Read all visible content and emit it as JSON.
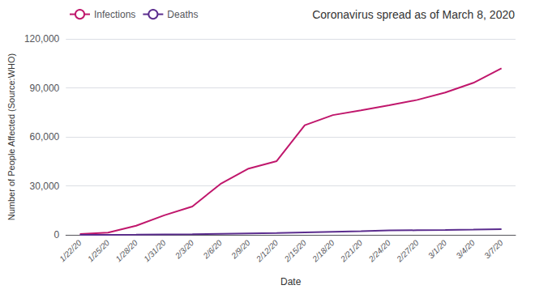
{
  "chart_data": {
    "type": "line",
    "title": "Coronavirus spread as of March 8, 2020",
    "xlabel": "Date",
    "ylabel": "Number of People Affected (Source:WHO)",
    "categories": [
      "1/22/20",
      "1/25/20",
      "1/28/20",
      "1/31/20",
      "2/3/20",
      "2/6/20",
      "2/9/20",
      "2/12/20",
      "2/15/20",
      "2/18/20",
      "2/21/20",
      "2/24/20",
      "2/27/20",
      "3/1/20",
      "3/4/20",
      "3/7/20"
    ],
    "series": [
      {
        "name": "Infections",
        "color": "#c0176c",
        "values": [
          555,
          1320,
          5578,
          11948,
          17391,
          31161,
          40553,
          45134,
          67100,
          73332,
          76281,
          79331,
          82623,
          87137,
          93090,
          101927
        ]
      },
      {
        "name": "Deaths",
        "color": "#5b2d8e",
        "values": [
          17,
          41,
          131,
          259,
          362,
          638,
          910,
          1115,
          1527,
          1873,
          2247,
          2699,
          2810,
          2978,
          3205,
          3460
        ]
      }
    ],
    "ylim": [
      0,
      120000
    ],
    "yticks": [
      0,
      {
        "value": 30000,
        "label": "30,000"
      },
      {
        "value": 60000,
        "label": "60,000"
      },
      {
        "value": 90000,
        "label": "90,000"
      },
      {
        "value": 120000,
        "label": "120,000"
      }
    ],
    "grid": true,
    "legend": "upper left"
  }
}
